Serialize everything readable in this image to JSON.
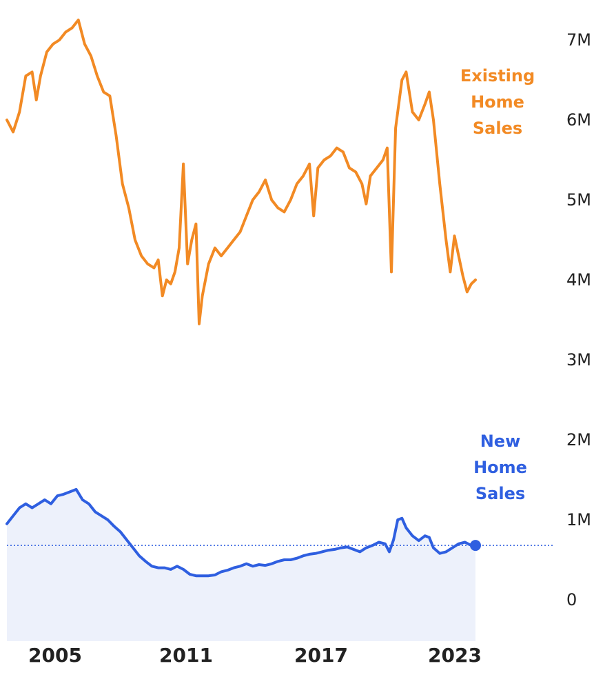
{
  "chart_data": {
    "type": "line",
    "title": "",
    "xlabel": "",
    "ylabel": "",
    "xlim": [
      2002,
      2026
    ],
    "ylim": [
      0,
      7500000
    ],
    "grid": false,
    "legend": "inline-right",
    "x_ticks": [
      {
        "value": 2005,
        "label": "2005"
      },
      {
        "value": 2011,
        "label": "2011"
      },
      {
        "value": 2017,
        "label": "2017"
      },
      {
        "value": 2023,
        "label": "2023"
      }
    ],
    "y_ticks": [
      {
        "value": 0,
        "label": "0"
      },
      {
        "value": 1000000,
        "label": "1M"
      },
      {
        "value": 2000000,
        "label": "2M"
      },
      {
        "value": 3000000,
        "label": "3M"
      },
      {
        "value": 4000000,
        "label": "4M"
      },
      {
        "value": 5000000,
        "label": "5M"
      },
      {
        "value": 6000000,
        "label": "6M"
      },
      {
        "value": 7000000,
        "label": "7M"
      }
    ],
    "reference_line": {
      "value": 680000,
      "style": "dotted",
      "color": "#2f5fe0"
    },
    "series": [
      {
        "name": "Existing Home Sales",
        "label_lines": [
          "Existing",
          "Home",
          "Sales"
        ],
        "color": "#f28a24",
        "points": [
          [
            2002.0,
            6.0
          ],
          [
            2002.3,
            5.85
          ],
          [
            2002.6,
            6.1
          ],
          [
            2002.9,
            6.55
          ],
          [
            2003.2,
            6.6
          ],
          [
            2003.4,
            6.25
          ],
          [
            2003.6,
            6.55
          ],
          [
            2003.9,
            6.85
          ],
          [
            2004.2,
            6.95
          ],
          [
            2004.5,
            7.0
          ],
          [
            2004.8,
            7.1
          ],
          [
            2005.1,
            7.15
          ],
          [
            2005.4,
            7.25
          ],
          [
            2005.7,
            6.95
          ],
          [
            2006.0,
            6.8
          ],
          [
            2006.3,
            6.55
          ],
          [
            2006.6,
            6.35
          ],
          [
            2006.9,
            6.3
          ],
          [
            2007.2,
            5.8
          ],
          [
            2007.5,
            5.2
          ],
          [
            2007.8,
            4.9
          ],
          [
            2008.1,
            4.5
          ],
          [
            2008.4,
            4.3
          ],
          [
            2008.7,
            4.2
          ],
          [
            2009.0,
            4.15
          ],
          [
            2009.2,
            4.25
          ],
          [
            2009.4,
            3.8
          ],
          [
            2009.6,
            4.0
          ],
          [
            2009.8,
            3.95
          ],
          [
            2010.0,
            4.1
          ],
          [
            2010.2,
            4.4
          ],
          [
            2010.4,
            5.45
          ],
          [
            2010.6,
            4.2
          ],
          [
            2010.8,
            4.5
          ],
          [
            2011.0,
            4.7
          ],
          [
            2011.15,
            3.45
          ],
          [
            2011.3,
            3.8
          ],
          [
            2011.6,
            4.2
          ],
          [
            2011.9,
            4.4
          ],
          [
            2012.2,
            4.3
          ],
          [
            2012.5,
            4.4
          ],
          [
            2012.8,
            4.5
          ],
          [
            2013.1,
            4.6
          ],
          [
            2013.4,
            4.8
          ],
          [
            2013.7,
            5.0
          ],
          [
            2014.0,
            5.1
          ],
          [
            2014.3,
            5.25
          ],
          [
            2014.6,
            5.0
          ],
          [
            2014.9,
            4.9
          ],
          [
            2015.2,
            4.85
          ],
          [
            2015.5,
            5.0
          ],
          [
            2015.8,
            5.2
          ],
          [
            2016.1,
            5.3
          ],
          [
            2016.4,
            5.45
          ],
          [
            2016.6,
            4.8
          ],
          [
            2016.8,
            5.4
          ],
          [
            2017.1,
            5.5
          ],
          [
            2017.4,
            5.55
          ],
          [
            2017.7,
            5.65
          ],
          [
            2018.0,
            5.6
          ],
          [
            2018.3,
            5.4
          ],
          [
            2018.6,
            5.35
          ],
          [
            2018.9,
            5.2
          ],
          [
            2019.1,
            4.95
          ],
          [
            2019.3,
            5.3
          ],
          [
            2019.6,
            5.4
          ],
          [
            2019.9,
            5.5
          ],
          [
            2020.1,
            5.65
          ],
          [
            2020.3,
            4.1
          ],
          [
            2020.5,
            5.9
          ],
          [
            2020.8,
            6.5
          ],
          [
            2021.0,
            6.6
          ],
          [
            2021.3,
            6.1
          ],
          [
            2021.6,
            6.0
          ],
          [
            2021.9,
            6.2
          ],
          [
            2022.1,
            6.35
          ],
          [
            2022.3,
            6.0
          ],
          [
            2022.6,
            5.2
          ],
          [
            2022.9,
            4.5
          ],
          [
            2023.1,
            4.1
          ],
          [
            2023.3,
            4.55
          ],
          [
            2023.5,
            4.3
          ],
          [
            2023.7,
            4.05
          ],
          [
            2023.9,
            3.85
          ],
          [
            2024.1,
            3.95
          ],
          [
            2024.3,
            4.0
          ]
        ]
      },
      {
        "name": "New Home Sales",
        "label_lines": [
          "New",
          "Home",
          "Sales"
        ],
        "color": "#2f5fe0",
        "fill": "#edf1fb",
        "points": [
          [
            2002.0,
            0.95
          ],
          [
            2002.3,
            1.05
          ],
          [
            2002.6,
            1.15
          ],
          [
            2002.9,
            1.2
          ],
          [
            2003.2,
            1.15
          ],
          [
            2003.5,
            1.2
          ],
          [
            2003.8,
            1.25
          ],
          [
            2004.1,
            1.2
          ],
          [
            2004.4,
            1.3
          ],
          [
            2004.7,
            1.32
          ],
          [
            2005.0,
            1.35
          ],
          [
            2005.3,
            1.38
          ],
          [
            2005.6,
            1.25
          ],
          [
            2005.9,
            1.2
          ],
          [
            2006.2,
            1.1
          ],
          [
            2006.5,
            1.05
          ],
          [
            2006.8,
            1.0
          ],
          [
            2007.1,
            0.92
          ],
          [
            2007.4,
            0.85
          ],
          [
            2007.7,
            0.75
          ],
          [
            2008.0,
            0.65
          ],
          [
            2008.3,
            0.55
          ],
          [
            2008.6,
            0.48
          ],
          [
            2008.9,
            0.42
          ],
          [
            2009.2,
            0.4
          ],
          [
            2009.5,
            0.4
          ],
          [
            2009.8,
            0.38
          ],
          [
            2010.1,
            0.42
          ],
          [
            2010.4,
            0.38
          ],
          [
            2010.7,
            0.32
          ],
          [
            2011.0,
            0.3
          ],
          [
            2011.3,
            0.3
          ],
          [
            2011.6,
            0.3
          ],
          [
            2011.9,
            0.31
          ],
          [
            2012.2,
            0.35
          ],
          [
            2012.5,
            0.37
          ],
          [
            2012.8,
            0.4
          ],
          [
            2013.1,
            0.42
          ],
          [
            2013.4,
            0.45
          ],
          [
            2013.7,
            0.42
          ],
          [
            2014.0,
            0.44
          ],
          [
            2014.3,
            0.43
          ],
          [
            2014.6,
            0.45
          ],
          [
            2014.9,
            0.48
          ],
          [
            2015.2,
            0.5
          ],
          [
            2015.5,
            0.5
          ],
          [
            2015.8,
            0.52
          ],
          [
            2016.1,
            0.55
          ],
          [
            2016.4,
            0.57
          ],
          [
            2016.7,
            0.58
          ],
          [
            2017.0,
            0.6
          ],
          [
            2017.3,
            0.62
          ],
          [
            2017.6,
            0.63
          ],
          [
            2017.9,
            0.65
          ],
          [
            2018.2,
            0.66
          ],
          [
            2018.5,
            0.63
          ],
          [
            2018.8,
            0.6
          ],
          [
            2019.1,
            0.65
          ],
          [
            2019.4,
            0.68
          ],
          [
            2019.7,
            0.72
          ],
          [
            2020.0,
            0.7
          ],
          [
            2020.2,
            0.6
          ],
          [
            2020.4,
            0.75
          ],
          [
            2020.6,
            1.0
          ],
          [
            2020.8,
            1.02
          ],
          [
            2021.0,
            0.9
          ],
          [
            2021.3,
            0.8
          ],
          [
            2021.6,
            0.74
          ],
          [
            2021.9,
            0.8
          ],
          [
            2022.1,
            0.78
          ],
          [
            2022.3,
            0.65
          ],
          [
            2022.6,
            0.58
          ],
          [
            2022.9,
            0.6
          ],
          [
            2023.2,
            0.65
          ],
          [
            2023.5,
            0.7
          ],
          [
            2023.8,
            0.72
          ],
          [
            2024.1,
            0.68
          ],
          [
            2024.3,
            0.68
          ]
        ]
      }
    ]
  }
}
